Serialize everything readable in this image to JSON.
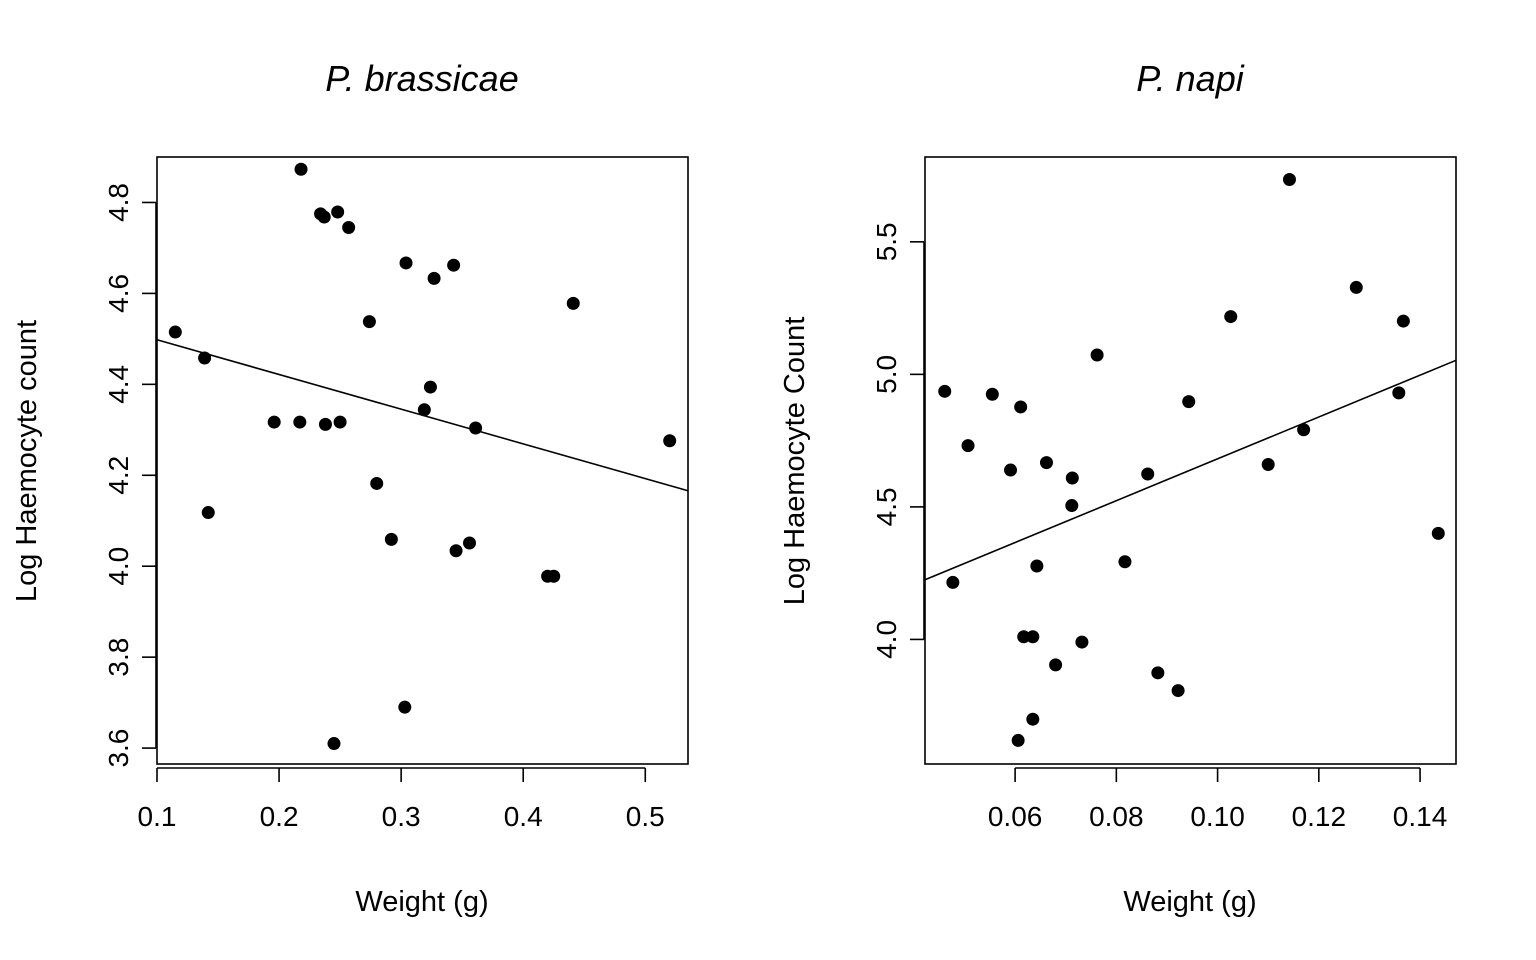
{
  "chart_data": [
    {
      "type": "scatter",
      "title": "P. brassicae",
      "xlabel": "Weight (g)",
      "ylabel": "Log Haemocyte count",
      "xlim": [
        0.1,
        0.535
      ],
      "ylim": [
        3.565,
        4.9
      ],
      "xticks": [
        "0.1",
        "0.2",
        "0.3",
        "0.4",
        "0.5"
      ],
      "yticks": [
        "3.6",
        "3.8",
        "4.0",
        "4.2",
        "4.4",
        "4.6",
        "4.8"
      ],
      "grid": false,
      "points": [
        [
          0.115,
          4.515
        ],
        [
          0.139,
          4.458
        ],
        [
          0.142,
          4.118
        ],
        [
          0.196,
          4.317
        ],
        [
          0.217,
          4.317
        ],
        [
          0.218,
          4.873
        ],
        [
          0.234,
          4.775
        ],
        [
          0.237,
          4.768
        ],
        [
          0.238,
          4.312
        ],
        [
          0.245,
          3.61
        ],
        [
          0.248,
          4.779
        ],
        [
          0.25,
          4.317
        ],
        [
          0.257,
          4.745
        ],
        [
          0.274,
          4.538
        ],
        [
          0.28,
          4.182
        ],
        [
          0.292,
          4.059
        ],
        [
          0.303,
          3.69
        ],
        [
          0.304,
          4.667
        ],
        [
          0.319,
          4.344
        ],
        [
          0.324,
          4.394
        ],
        [
          0.327,
          4.633
        ],
        [
          0.343,
          4.662
        ],
        [
          0.345,
          4.034
        ],
        [
          0.356,
          4.051
        ],
        [
          0.361,
          4.304
        ],
        [
          0.42,
          3.978
        ],
        [
          0.425,
          3.978
        ],
        [
          0.441,
          4.578
        ],
        [
          0.52,
          4.276
        ]
      ],
      "fit_line": {
        "x": [
          0.1,
          0.535
        ],
        "y": [
          4.498,
          4.166
        ]
      }
    },
    {
      "type": "scatter",
      "title": "P. napi",
      "xlabel": "Weight (g)",
      "ylabel": "Log Haemocyte Count",
      "xlim": [
        0.0422,
        0.1471
      ],
      "ylim": [
        3.53,
        5.82
      ],
      "xticks": [
        "0.06",
        "0.08",
        "0.10",
        "0.12",
        "0.14"
      ],
      "yticks": [
        "4.0",
        "4.5",
        "5.0",
        "5.5"
      ],
      "grid": false,
      "points": [
        [
          0.0461,
          4.936
        ],
        [
          0.0477,
          4.215
        ],
        [
          0.0507,
          4.731
        ],
        [
          0.0555,
          4.925
        ],
        [
          0.0591,
          4.639
        ],
        [
          0.0606,
          3.619
        ],
        [
          0.0611,
          4.877
        ],
        [
          0.0617,
          4.01
        ],
        [
          0.0635,
          4.01
        ],
        [
          0.0635,
          3.699
        ],
        [
          0.0643,
          4.277
        ],
        [
          0.0662,
          4.667
        ],
        [
          0.068,
          3.904
        ],
        [
          0.0712,
          4.505
        ],
        [
          0.0713,
          4.609
        ],
        [
          0.0732,
          3.99
        ],
        [
          0.0762,
          5.073
        ],
        [
          0.0817,
          4.293
        ],
        [
          0.0862,
          4.624
        ],
        [
          0.0882,
          3.874
        ],
        [
          0.0922,
          3.807
        ],
        [
          0.0943,
          4.897
        ],
        [
          0.1026,
          5.218
        ],
        [
          0.11,
          4.66
        ],
        [
          0.1142,
          5.735
        ],
        [
          0.117,
          4.791
        ],
        [
          0.1274,
          5.328
        ],
        [
          0.1358,
          4.93
        ],
        [
          0.1367,
          5.201
        ],
        [
          0.1436,
          4.4
        ]
      ],
      "fit_line": {
        "x": [
          0.0422,
          0.1471
        ],
        "y": [
          4.225,
          5.053
        ]
      }
    }
  ]
}
